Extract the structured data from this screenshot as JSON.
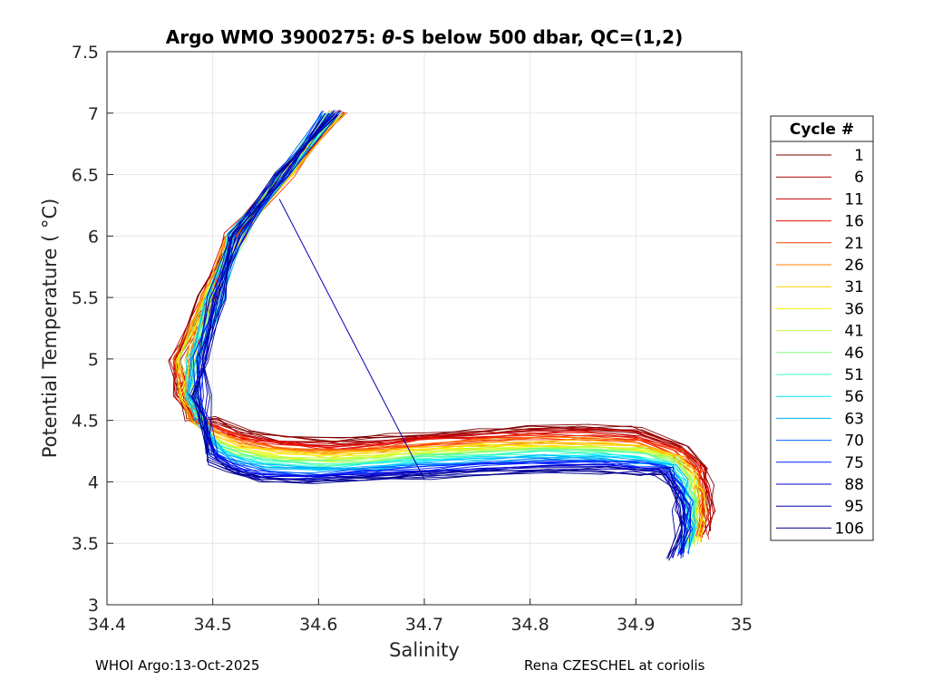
{
  "chart_data": {
    "type": "line",
    "title": "Argo WMO 3900275: θ-S below 500 dbar,  QC=(1,2)",
    "title_parts": {
      "prefix": "Argo WMO 3900275: ",
      "theta": "θ",
      "suffix": "-S below 500 dbar,  QC=(1,2)"
    },
    "xlabel": "Salinity",
    "ylabel": "Potential Temperature ( °C)",
    "xlim": [
      34.4,
      35.0
    ],
    "ylim": [
      3.0,
      7.5
    ],
    "xticks": [
      34.4,
      34.5,
      34.6,
      34.7,
      34.8,
      34.9,
      35.0
    ],
    "xtick_labels": [
      "34.4",
      "34.5",
      "34.6",
      "34.7",
      "34.8",
      "34.9",
      "35"
    ],
    "yticks": [
      3.0,
      3.5,
      4.0,
      4.5,
      5.0,
      5.5,
      6.0,
      6.5,
      7.0,
      7.5
    ],
    "ytick_labels": [
      "3",
      "3.5",
      "4",
      "4.5",
      "5",
      "5.5",
      "6",
      "6.5",
      "7",
      "7.5"
    ],
    "grid": true,
    "legend": {
      "title": "Cycle #",
      "placement": "outside-right",
      "entries": [
        "1",
        "6",
        "11",
        "16",
        "21",
        "26",
        "31",
        "36",
        "41",
        "46",
        "51",
        "56",
        "63",
        "70",
        "75",
        "88",
        "95",
        "106"
      ],
      "colors": [
        "#800000",
        "#a50000",
        "#cc0000",
        "#e81000",
        "#ff4000",
        "#ff7b00",
        "#ffcc00",
        "#f4f600",
        "#bfff40",
        "#80ff80",
        "#40ffbf",
        "#00e8ff",
        "#00b0ff",
        "#0064ff",
        "#0020ff",
        "#0000d8",
        "#0000b0",
        "#00008f"
      ]
    },
    "series_template": {
      "theta": [
        7.0,
        6.5,
        6.0,
        5.5,
        5.0,
        4.7,
        4.5,
        4.38,
        4.28,
        4.22,
        4.2,
        4.22,
        4.25,
        4.28,
        4.3,
        4.3,
        4.28,
        4.2,
        4.05,
        3.9,
        3.7,
        3.5
      ],
      "salinity_early": [
        34.62,
        34.57,
        34.52,
        34.495,
        34.465,
        34.47,
        34.48,
        34.5,
        34.53,
        34.57,
        34.62,
        34.66,
        34.7,
        34.75,
        34.8,
        34.85,
        34.9,
        34.945,
        34.965,
        34.97,
        34.972,
        34.968
      ],
      "salinity_late": [
        34.61,
        34.565,
        34.525,
        34.505,
        34.49,
        34.49,
        34.495,
        34.5,
        34.52,
        34.545,
        34.59,
        34.64,
        34.7,
        34.76,
        34.82,
        34.87,
        34.905,
        34.925,
        34.935,
        34.94,
        34.94,
        34.935
      ],
      "theta_shift_early": 0.15,
      "theta_shift_late": -0.22
    },
    "annotations": {
      "outlier_line": [
        {
          "salinity": 34.563,
          "theta": 6.3
        },
        {
          "salinity": 34.7,
          "theta": 4.02
        }
      ]
    }
  },
  "footer": {
    "left": "WHOI Argo:13-Oct-2025",
    "right": "Rena CZESCHEL at coriolis"
  }
}
